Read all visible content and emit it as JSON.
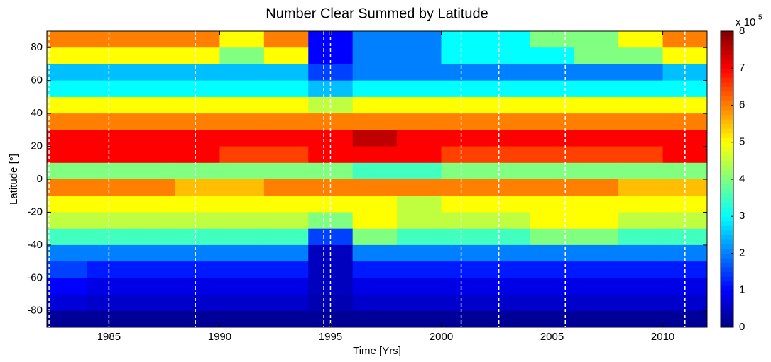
{
  "chart_data": {
    "type": "heatmap",
    "title": "Number Clear Summed by Latitude",
    "x_label": "Time [Yrs]",
    "y_label": "Latitude [°]",
    "colorbar_multiplier": "x 10",
    "colorbar_exponent": "5",
    "colormap": "jet",
    "x_edges": [
      1982.2,
      1984,
      1986,
      1988,
      1990,
      1992,
      1994,
      1996,
      1998,
      2000,
      2002,
      2004,
      2006,
      2008,
      2010,
      2012
    ],
    "y_edges": [
      90,
      80,
      70,
      60,
      50,
      40,
      30,
      20,
      10,
      0,
      -10,
      -20,
      -30,
      -40,
      -50,
      -60,
      -70,
      -80,
      -90
    ],
    "z": [
      [
        6,
        6,
        6,
        6,
        5,
        6,
        1,
        2,
        2,
        3,
        3,
        4,
        4,
        5,
        6
      ],
      [
        5,
        5,
        5,
        5,
        4,
        5,
        1,
        2,
        2,
        3,
        3,
        3,
        4,
        4,
        5
      ],
      [
        2.5,
        2.5,
        2.5,
        2.5,
        2.5,
        2.5,
        1.5,
        2,
        2,
        2,
        2,
        2,
        2,
        2,
        2.5
      ],
      [
        3,
        3,
        3,
        3,
        3,
        3,
        2.5,
        3,
        3,
        3,
        3,
        3,
        3,
        3,
        3
      ],
      [
        5,
        5,
        5,
        5,
        5,
        5,
        4.5,
        5,
        5,
        5,
        5,
        5,
        5,
        5,
        5
      ],
      [
        6,
        6,
        6,
        6,
        6,
        6,
        6,
        6,
        6,
        6,
        6,
        6,
        6,
        6,
        6
      ],
      [
        7,
        7,
        7,
        7,
        7,
        7,
        7,
        7.5,
        7,
        7,
        7,
        7,
        7,
        7,
        7
      ],
      [
        7,
        7,
        7,
        7,
        6.5,
        6.5,
        7,
        7,
        7,
        6.5,
        6.5,
        6.5,
        6.5,
        6.5,
        7
      ],
      [
        4,
        4,
        4,
        4,
        4,
        4,
        4,
        3.5,
        3.5,
        4,
        4,
        4,
        4,
        4,
        4
      ],
      [
        6,
        6,
        6,
        5.5,
        5.5,
        6,
        6,
        6,
        6,
        6,
        6,
        6,
        6,
        5.5,
        5.5
      ],
      [
        5,
        5,
        5,
        5,
        5,
        5,
        5,
        5,
        4.5,
        5,
        5,
        5,
        5,
        5,
        5
      ],
      [
        4.5,
        4.5,
        4.5,
        4.5,
        4.5,
        4.5,
        4,
        5,
        4.5,
        4.5,
        4.5,
        5,
        5,
        4.5,
        4.5
      ],
      [
        3.5,
        3.5,
        3.5,
        3.5,
        3.5,
        3.5,
        1.5,
        4,
        3.5,
        3.5,
        3.5,
        4,
        4,
        3.5,
        3.5
      ],
      [
        2,
        2,
        2,
        2,
        2,
        2,
        0.5,
        2,
        2,
        2,
        2,
        2,
        2,
        2,
        2
      ],
      [
        1.5,
        1.2,
        1.2,
        1.2,
        1.2,
        1.2,
        0.5,
        1.2,
        1.2,
        1.2,
        1.2,
        1.2,
        1.2,
        1.2,
        1.2
      ],
      [
        1,
        0.8,
        0.8,
        0.8,
        0.8,
        0.8,
        0.5,
        0.8,
        0.8,
        0.8,
        0.8,
        0.8,
        0.8,
        0.8,
        0.8
      ],
      [
        0.7,
        0.6,
        0.6,
        0.6,
        0.6,
        0.6,
        0.4,
        0.6,
        0.6,
        0.6,
        0.6,
        0.6,
        0.6,
        0.6,
        0.6
      ],
      [
        0.2,
        0.2,
        0.2,
        0.2,
        0.2,
        0.2,
        0.2,
        0.2,
        0.2,
        0.2,
        0.2,
        0.2,
        0.2,
        0.2,
        0.2
      ]
    ],
    "xlim": [
      1982.2,
      2012
    ],
    "ylim": [
      -90,
      90
    ],
    "xticks": [
      1985,
      1990,
      1995,
      2000,
      2005,
      2010
    ],
    "yticks": [
      -80,
      -60,
      -40,
      -20,
      0,
      20,
      40,
      60,
      80
    ],
    "clim": [
      0,
      8
    ],
    "cticks": [
      0,
      1,
      2,
      3,
      4,
      5,
      6,
      7,
      8
    ],
    "vlines": [
      1982.3,
      1985,
      1988.9,
      1994.7,
      1995,
      2000.9,
      2002.6,
      2005.6,
      2011
    ],
    "vline_color": "#ffffff"
  }
}
